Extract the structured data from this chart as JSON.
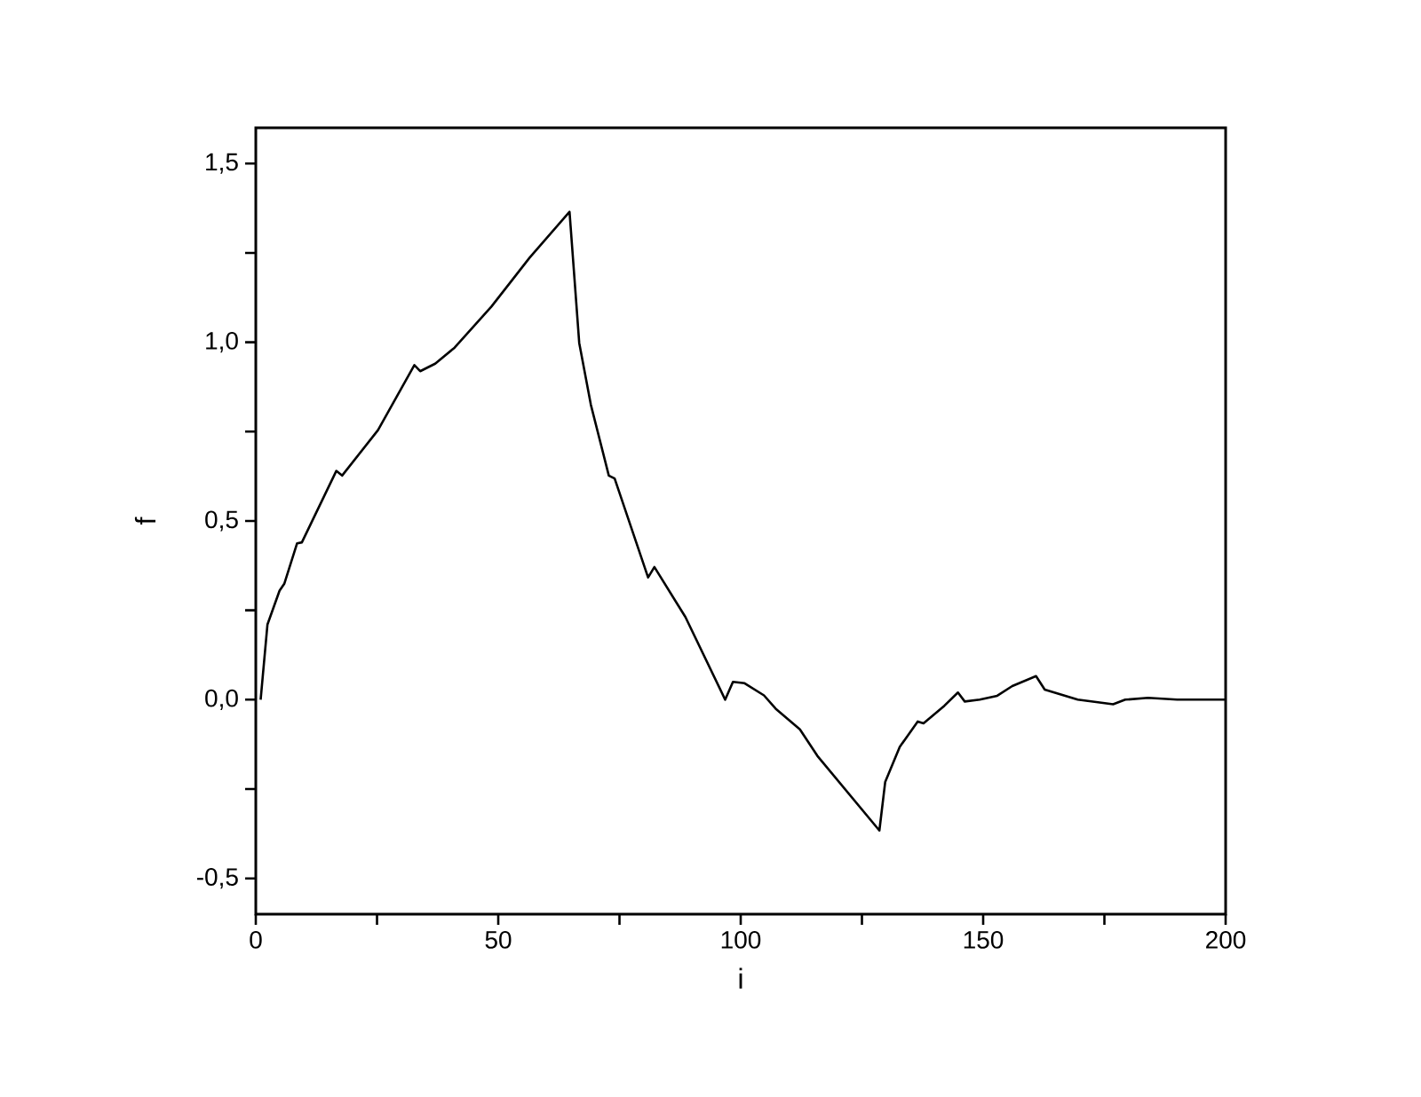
{
  "chart_data": {
    "type": "line",
    "xlabel": "i",
    "ylabel": "f",
    "x": [
      1,
      2.4,
      4.9,
      5.9,
      8.5,
      9.5,
      16.6,
      17.8,
      25.2,
      32.7,
      33.9,
      37,
      41,
      48.6,
      56.5,
      64.7,
      66.7,
      69.1,
      72.8,
      74,
      80.9,
      82.2,
      88.6,
      96.8,
      98.4,
      100.8,
      104.8,
      107.2,
      112.2,
      115.8,
      128.6,
      129.8,
      132.8,
      136.5,
      137.7,
      142,
      144.8,
      146.2,
      149.3,
      152.9,
      156,
      160.9,
      162.7,
      169.5,
      176.8,
      179.3,
      184,
      190,
      200
    ],
    "series": [
      {
        "color": "#000000",
        "values": [
          0,
          0.21,
          0.305,
          0.325,
          0.437,
          0.44,
          0.64,
          0.627,
          0.754,
          0.936,
          0.919,
          0.94,
          0.985,
          1.1,
          1.237,
          1.365,
          0.998,
          0.825,
          0.627,
          0.619,
          0.342,
          0.371,
          0.231,
          0.0,
          0.05,
          0.046,
          0.012,
          -0.025,
          -0.083,
          -0.157,
          -0.366,
          -0.23,
          -0.132,
          -0.061,
          -0.066,
          -0.017,
          0.02,
          -0.005,
          0,
          0.011,
          0.038,
          0.066,
          0.028,
          0.0,
          -0.013,
          0,
          0.005,
          0,
          0
        ]
      }
    ],
    "xlim": [
      0,
      200
    ],
    "ylim": [
      -0.6,
      1.6
    ],
    "xticks": [
      0,
      {
        "value": 25,
        "label": null
      },
      50,
      {
        "value": 75,
        "label": null
      },
      100,
      {
        "value": 125,
        "label": null
      },
      150,
      {
        "value": 175,
        "label": null
      },
      200
    ],
    "yticks": [
      {
        "value": -0.5,
        "label": "-0,5"
      },
      {
        "value": -0.25,
        "label": null
      },
      {
        "value": 0,
        "label": "0,0"
      },
      {
        "value": 0.25,
        "label": null
      },
      {
        "value": 0.5,
        "label": "0,5"
      },
      {
        "value": 0.75,
        "label": null
      },
      {
        "value": 1.0,
        "label": "1,0"
      },
      {
        "value": 1.25,
        "label": null
      },
      {
        "value": 1.5,
        "label": "1,5"
      }
    ],
    "marker": "none",
    "line_style": "solid"
  }
}
